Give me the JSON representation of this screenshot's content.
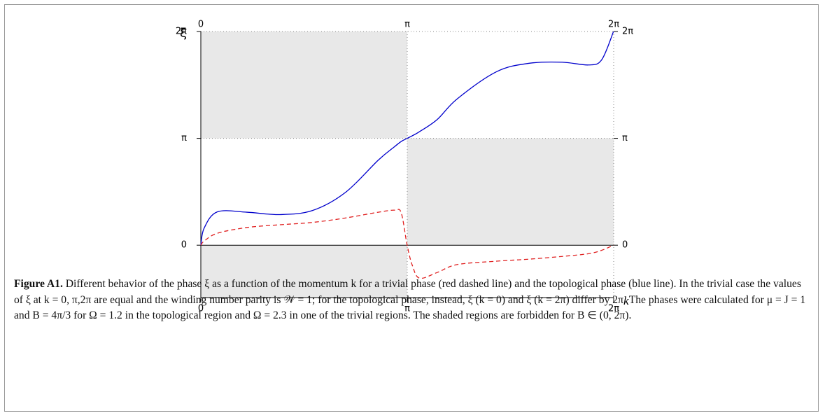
{
  "chart_data": {
    "type": "line",
    "ylabel": "ξ",
    "xlabel": "k",
    "xlim": [
      0,
      6.28319
    ],
    "ylim": [
      -1.54,
      6.28319
    ],
    "xticks": [
      0,
      {
        "value": 3.14159,
        "label": "π"
      },
      {
        "value": 6.28319,
        "label": "2π"
      }
    ],
    "yticks": [
      0,
      {
        "value": 3.14159,
        "label": "π"
      },
      {
        "value": 6.28319,
        "label": "2π"
      }
    ],
    "shaded_regions": [
      {
        "x": [
          0,
          3.14159
        ],
        "y": [
          3.14159,
          6.28319
        ]
      },
      {
        "x": [
          3.14159,
          6.28319
        ],
        "y": [
          0,
          3.14159
        ]
      },
      {
        "x": [
          0,
          3.14159
        ],
        "y": [
          -1.54,
          0
        ]
      }
    ],
    "shade_color": "#e8e8e8",
    "x": [
      0,
      0.05,
      0.25,
      0.7,
      1.2,
      1.7,
      2.2,
      2.7,
      2.95,
      3.05,
      3.14,
      3.22,
      3.33,
      3.6,
      3.9,
      4.5,
      5.0,
      5.5,
      5.9,
      6.1,
      6.28
    ],
    "series": [
      {
        "color": "#0000cc",
        "dash": false,
        "values": [
          0,
          0.5,
          0.98,
          0.97,
          0.9,
          1.02,
          1.55,
          2.5,
          2.9,
          3.05,
          3.14,
          3.22,
          3.34,
          3.7,
          4.3,
          5.1,
          5.35,
          5.38,
          5.3,
          5.45,
          6.28
        ]
      },
      {
        "color": "#e02020",
        "dash": true,
        "values": [
          0,
          0.12,
          0.35,
          0.52,
          0.6,
          0.67,
          0.8,
          0.97,
          1.03,
          0.95,
          0,
          -0.6,
          -0.97,
          -0.8,
          -0.57,
          -0.47,
          -0.41,
          -0.33,
          -0.25,
          -0.15,
          0
        ]
      }
    ]
  },
  "caption": {
    "label": "Figure A1.",
    "text": "Different behavior of the phase ξ as a function of the momentum k for a trivial phase (red dashed line) and the topological phase (blue line). In the trivial case the values of ξ at k = 0, π,2π are equal and the winding number parity is 𝒲 = 1; for the topological phase, instead, ξ (k = 0) and ξ (k = 2π) differ by 2π. The phases were calculated for μ = J = 1 and B = 4π/3 for Ω = 1.2 in the topological region and Ω = 2.3 in one of the trivial regions. The shaded regions are forbidden for B ∈ (0, 2π)."
  }
}
